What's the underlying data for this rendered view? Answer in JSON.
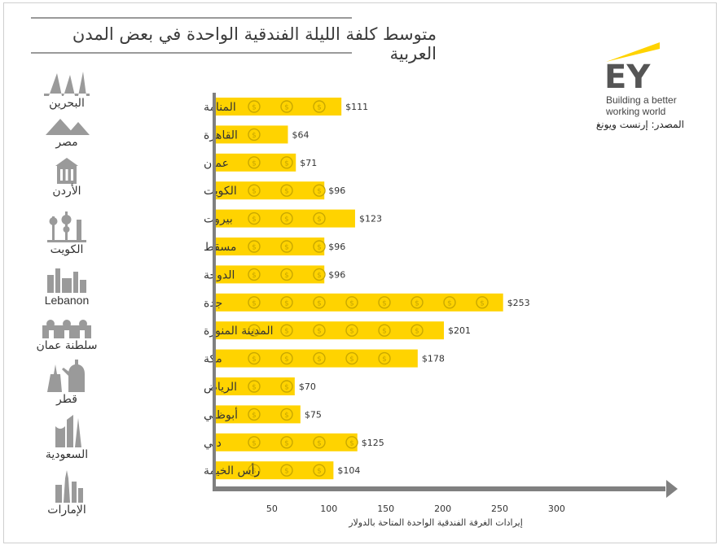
{
  "title": "متوسط كلفة الليلة الفندقية الواحدة في بعض المدن العربية",
  "brand": {
    "logo_text": "EY",
    "tagline_line1": "Building a better",
    "tagline_line2": "working world"
  },
  "source": "المصدر: إرنست ويونغ",
  "colors": {
    "bar": "#FFD300",
    "coin": "#C9A800",
    "axis": "#808080",
    "icon": "#9a9a9a"
  },
  "countries": [
    {
      "name": "البحرين",
      "icon": "bahrain-towers-icon"
    },
    {
      "name": "مصر",
      "icon": "egypt-pyramids-icon"
    },
    {
      "name": "الأردن",
      "icon": "jordan-petra-icon"
    },
    {
      "name": "الكويت",
      "icon": "kuwait-towers-icon"
    },
    {
      "name": "Lebanon",
      "icon": "lebanon-skyline-icon"
    },
    {
      "name": "سلطنة عمان",
      "icon": "oman-fort-icon"
    },
    {
      "name": "قطر",
      "icon": "qatar-coffee-pot-icon"
    },
    {
      "name": "السعودية",
      "icon": "saudi-kingdom-tower-icon"
    },
    {
      "name": "الإمارات",
      "icon": "uae-burj-icon"
    }
  ],
  "chart_data": {
    "type": "bar",
    "orientation": "horizontal",
    "title": "متوسط كلفة الليلة الفندقية الواحدة في بعض المدن العربية",
    "xlabel": "إيرادات الغرفة الفندقية الواحدة المتاحة بالدولار",
    "ylabel": "",
    "xlim": [
      0,
      300
    ],
    "xticks": [
      50,
      100,
      150,
      200,
      250,
      300
    ],
    "categories": [
      "المنامة",
      "القاهرة",
      "عمان",
      "الكويت",
      "بيروت",
      "مسقط",
      "الدوحة",
      "جدة",
      "المدينة المنورة",
      "مكة",
      "الرياض",
      "أبوظبي",
      "دبي",
      "رأس الخيمة"
    ],
    "values": [
      111,
      64,
      71,
      96,
      123,
      96,
      96,
      253,
      201,
      178,
      70,
      75,
      125,
      104
    ],
    "value_labels": [
      "$111",
      "$64",
      "$71",
      "$96",
      "$123",
      "$96",
      "$96",
      "$253",
      "$201",
      "$178",
      "$70",
      "$75",
      "$125",
      "$104"
    ],
    "grid": false,
    "legend": "none"
  }
}
